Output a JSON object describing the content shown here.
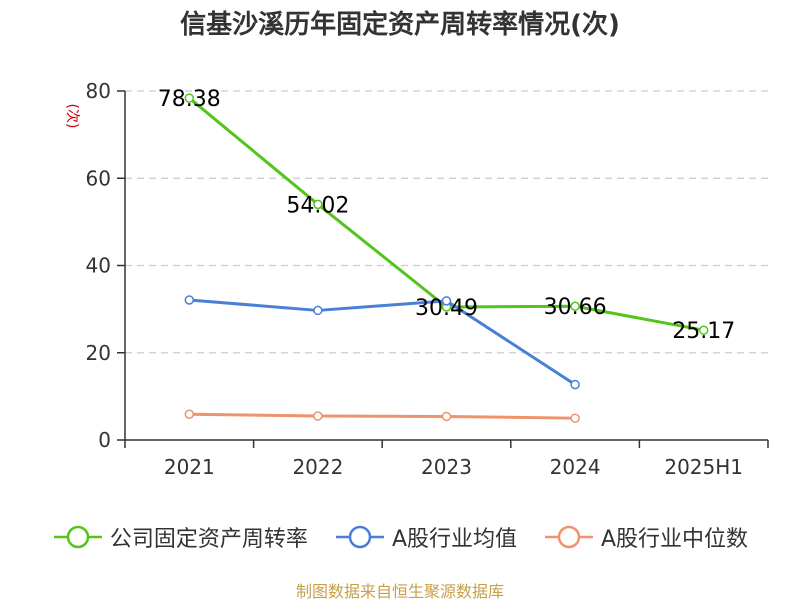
{
  "title": "信基沙溪历年固定资产周转率情况(次)",
  "source_note": "制图数据来自恒生聚源数据库",
  "colors": {
    "company": "#52c41a",
    "avg": "#4a7fd8",
    "median": "#f0926a",
    "grid": "#cccccc",
    "axis": "#333333",
    "source": "#c8a04a"
  },
  "chart_data": {
    "type": "line",
    "title": "信基沙溪历年固定资产周转率情况(次)",
    "xlabel": "",
    "ylabel": "(次)",
    "ylim": [
      0,
      80
    ],
    "yticks": [
      0,
      20,
      40,
      60,
      80
    ],
    "categories": [
      "2021",
      "2022",
      "2023",
      "2024",
      "2025H1"
    ],
    "series": [
      {
        "name": "公司固定资产周转率",
        "color_key": "company",
        "values": [
          78.38,
          54.02,
          30.49,
          30.66,
          25.17
        ],
        "show_labels": true
      },
      {
        "name": "A股行业均值",
        "color_key": "avg",
        "values": [
          32.1,
          29.7,
          31.9,
          12.7,
          null
        ],
        "show_labels": false
      },
      {
        "name": "A股行业中位数",
        "color_key": "median",
        "values": [
          5.9,
          5.5,
          5.4,
          5.0,
          null
        ],
        "show_labels": false
      }
    ],
    "legend_position": "bottom",
    "grid": true
  }
}
